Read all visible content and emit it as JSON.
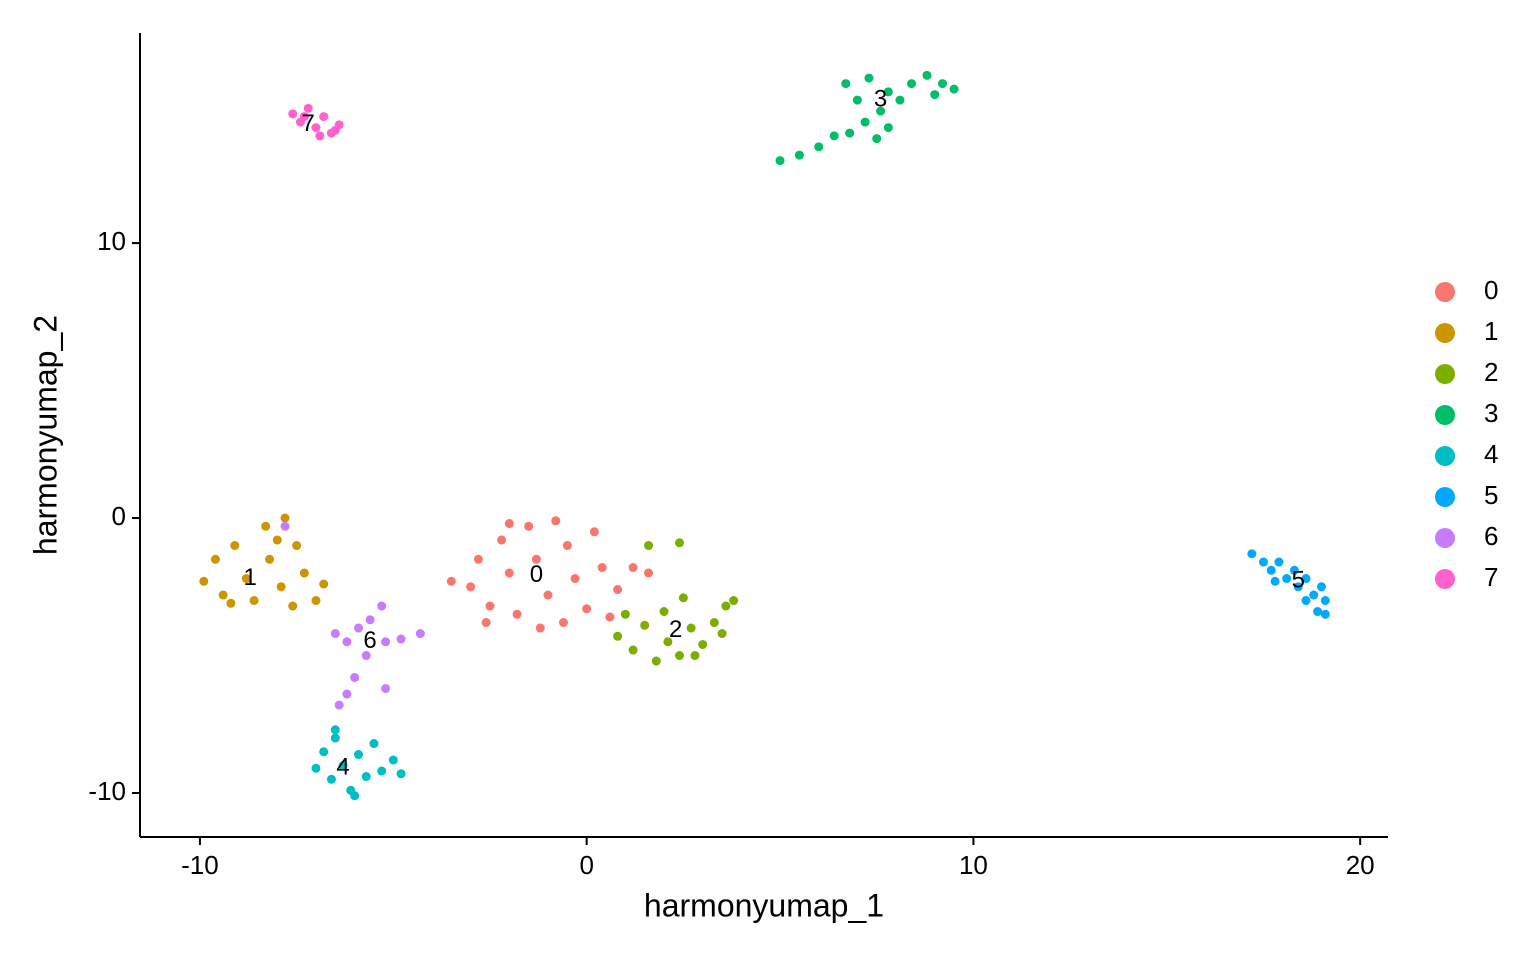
{
  "chart_data": {
    "type": "scatter",
    "x_label": "harmonyumap_1",
    "y_label": "harmonyumap_2",
    "xlim": [
      -11.55,
      20.72
    ],
    "ylim": [
      -11.6,
      17.64
    ],
    "xticks": [
      -10,
      0,
      10,
      20
    ],
    "yticks": [
      -10,
      0,
      10
    ],
    "legend": "right",
    "series": [
      {
        "name": "0",
        "color": "#F8766D",
        "label_x": -1.3,
        "label_y": -2.1,
        "x": [
          -3.0,
          -2.8,
          -2.5,
          -2.2,
          -2.0,
          -1.8,
          -1.5,
          -1.3,
          -1.0,
          -0.8,
          -0.5,
          -0.3,
          0.0,
          0.2,
          0.4,
          0.8,
          1.2,
          -2.6,
          -3.5,
          -1.2,
          0.6,
          1.6,
          -0.6,
          -2.0
        ],
        "y": [
          -2.5,
          -1.5,
          -3.2,
          -0.8,
          -2.0,
          -3.5,
          -0.3,
          -1.5,
          -2.8,
          -0.1,
          -1.0,
          -2.2,
          -3.3,
          -0.5,
          -1.8,
          -2.6,
          -1.8,
          -3.8,
          -2.3,
          -4.0,
          -3.6,
          -2.0,
          -3.8,
          -0.2
        ]
      },
      {
        "name": "1",
        "color": "#CD9600",
        "label_x": -8.7,
        "label_y": -2.2,
        "x": [
          -9.9,
          -9.6,
          -9.4,
          -9.1,
          -8.8,
          -8.6,
          -8.3,
          -8.2,
          -7.9,
          -7.8,
          -7.5,
          -7.3,
          -7.0,
          -6.8,
          -7.6,
          -9.2,
          -8.0
        ],
        "y": [
          -2.3,
          -1.5,
          -2.8,
          -1.0,
          -2.2,
          -3.0,
          -0.3,
          -1.5,
          -2.5,
          0.0,
          -1.0,
          -2.0,
          -3.0,
          -2.4,
          -3.2,
          -3.1,
          -0.8
        ]
      },
      {
        "name": "2",
        "color": "#7CAE00",
        "label_x": 2.3,
        "label_y": -4.1,
        "x": [
          0.8,
          1.2,
          1.5,
          1.8,
          2.1,
          2.4,
          2.7,
          3.0,
          3.3,
          3.6,
          3.8,
          3.5,
          2.0,
          1.6,
          2.4,
          2.5,
          1.0,
          2.8
        ],
        "y": [
          -4.3,
          -4.8,
          -3.9,
          -5.2,
          -4.5,
          -5.0,
          -4.0,
          -4.6,
          -3.8,
          -3.2,
          -3.0,
          -4.2,
          -3.4,
          -1.0,
          -0.9,
          -2.9,
          -3.5,
          -5.0
        ]
      },
      {
        "name": "3",
        "color": "#00BE67",
        "label_x": 7.6,
        "label_y": 15.2,
        "x": [
          5.0,
          5.5,
          6.0,
          6.4,
          6.8,
          7.2,
          7.5,
          7.8,
          7.0,
          6.7,
          7.3,
          7.8,
          8.1,
          8.4,
          8.8,
          9.2,
          9.5,
          9.0,
          7.6
        ],
        "y": [
          13.0,
          13.2,
          13.5,
          13.9,
          14.0,
          14.4,
          13.8,
          14.2,
          15.2,
          15.8,
          16.0,
          15.5,
          15.2,
          15.8,
          16.1,
          15.8,
          15.6,
          15.4,
          14.8
        ]
      },
      {
        "name": "4",
        "color": "#00BFC4",
        "label_x": -6.3,
        "label_y": -9.1,
        "x": [
          -7.0,
          -6.8,
          -6.6,
          -6.5,
          -6.3,
          -6.1,
          -5.9,
          -5.7,
          -5.5,
          -5.3,
          -5.0,
          -4.8,
          -6.0,
          -6.5
        ],
        "y": [
          -9.1,
          -8.5,
          -9.5,
          -8.0,
          -9.0,
          -9.9,
          -8.6,
          -9.4,
          -8.2,
          -9.2,
          -8.8,
          -9.3,
          -10.1,
          -7.7
        ]
      },
      {
        "name": "5",
        "color": "#00A9FF",
        "label_x": 18.4,
        "label_y": -2.3,
        "x": [
          17.2,
          17.5,
          17.7,
          17.9,
          18.1,
          18.3,
          18.4,
          18.6,
          18.8,
          19.0,
          19.1,
          18.9,
          19.1,
          18.6,
          17.8
        ],
        "y": [
          -1.3,
          -1.6,
          -1.9,
          -1.6,
          -2.2,
          -1.9,
          -2.5,
          -2.2,
          -2.8,
          -2.5,
          -3.0,
          -3.4,
          -3.5,
          -3.0,
          -2.3
        ]
      },
      {
        "name": "6",
        "color": "#C77CFF",
        "label_x": -5.6,
        "label_y": -4.5,
        "x": [
          -6.5,
          -6.2,
          -5.9,
          -5.6,
          -5.3,
          -5.7,
          -6.0,
          -6.2,
          -5.2,
          -4.8,
          -4.3,
          -5.2,
          -6.4,
          -7.8
        ],
        "y": [
          -4.2,
          -4.5,
          -4.0,
          -3.7,
          -3.2,
          -5.0,
          -5.8,
          -6.4,
          -4.5,
          -4.4,
          -4.2,
          -6.2,
          -6.8,
          -0.3
        ]
      },
      {
        "name": "7",
        "color": "#FF61CC",
        "label_x": -7.2,
        "label_y": 14.3,
        "x": [
          -7.6,
          -7.4,
          -7.2,
          -7.0,
          -6.8,
          -6.6,
          -6.4,
          -6.9,
          -7.3,
          -6.5
        ],
        "y": [
          14.7,
          14.4,
          14.9,
          14.2,
          14.6,
          14.0,
          14.3,
          13.9,
          14.6,
          14.1
        ]
      }
    ]
  }
}
